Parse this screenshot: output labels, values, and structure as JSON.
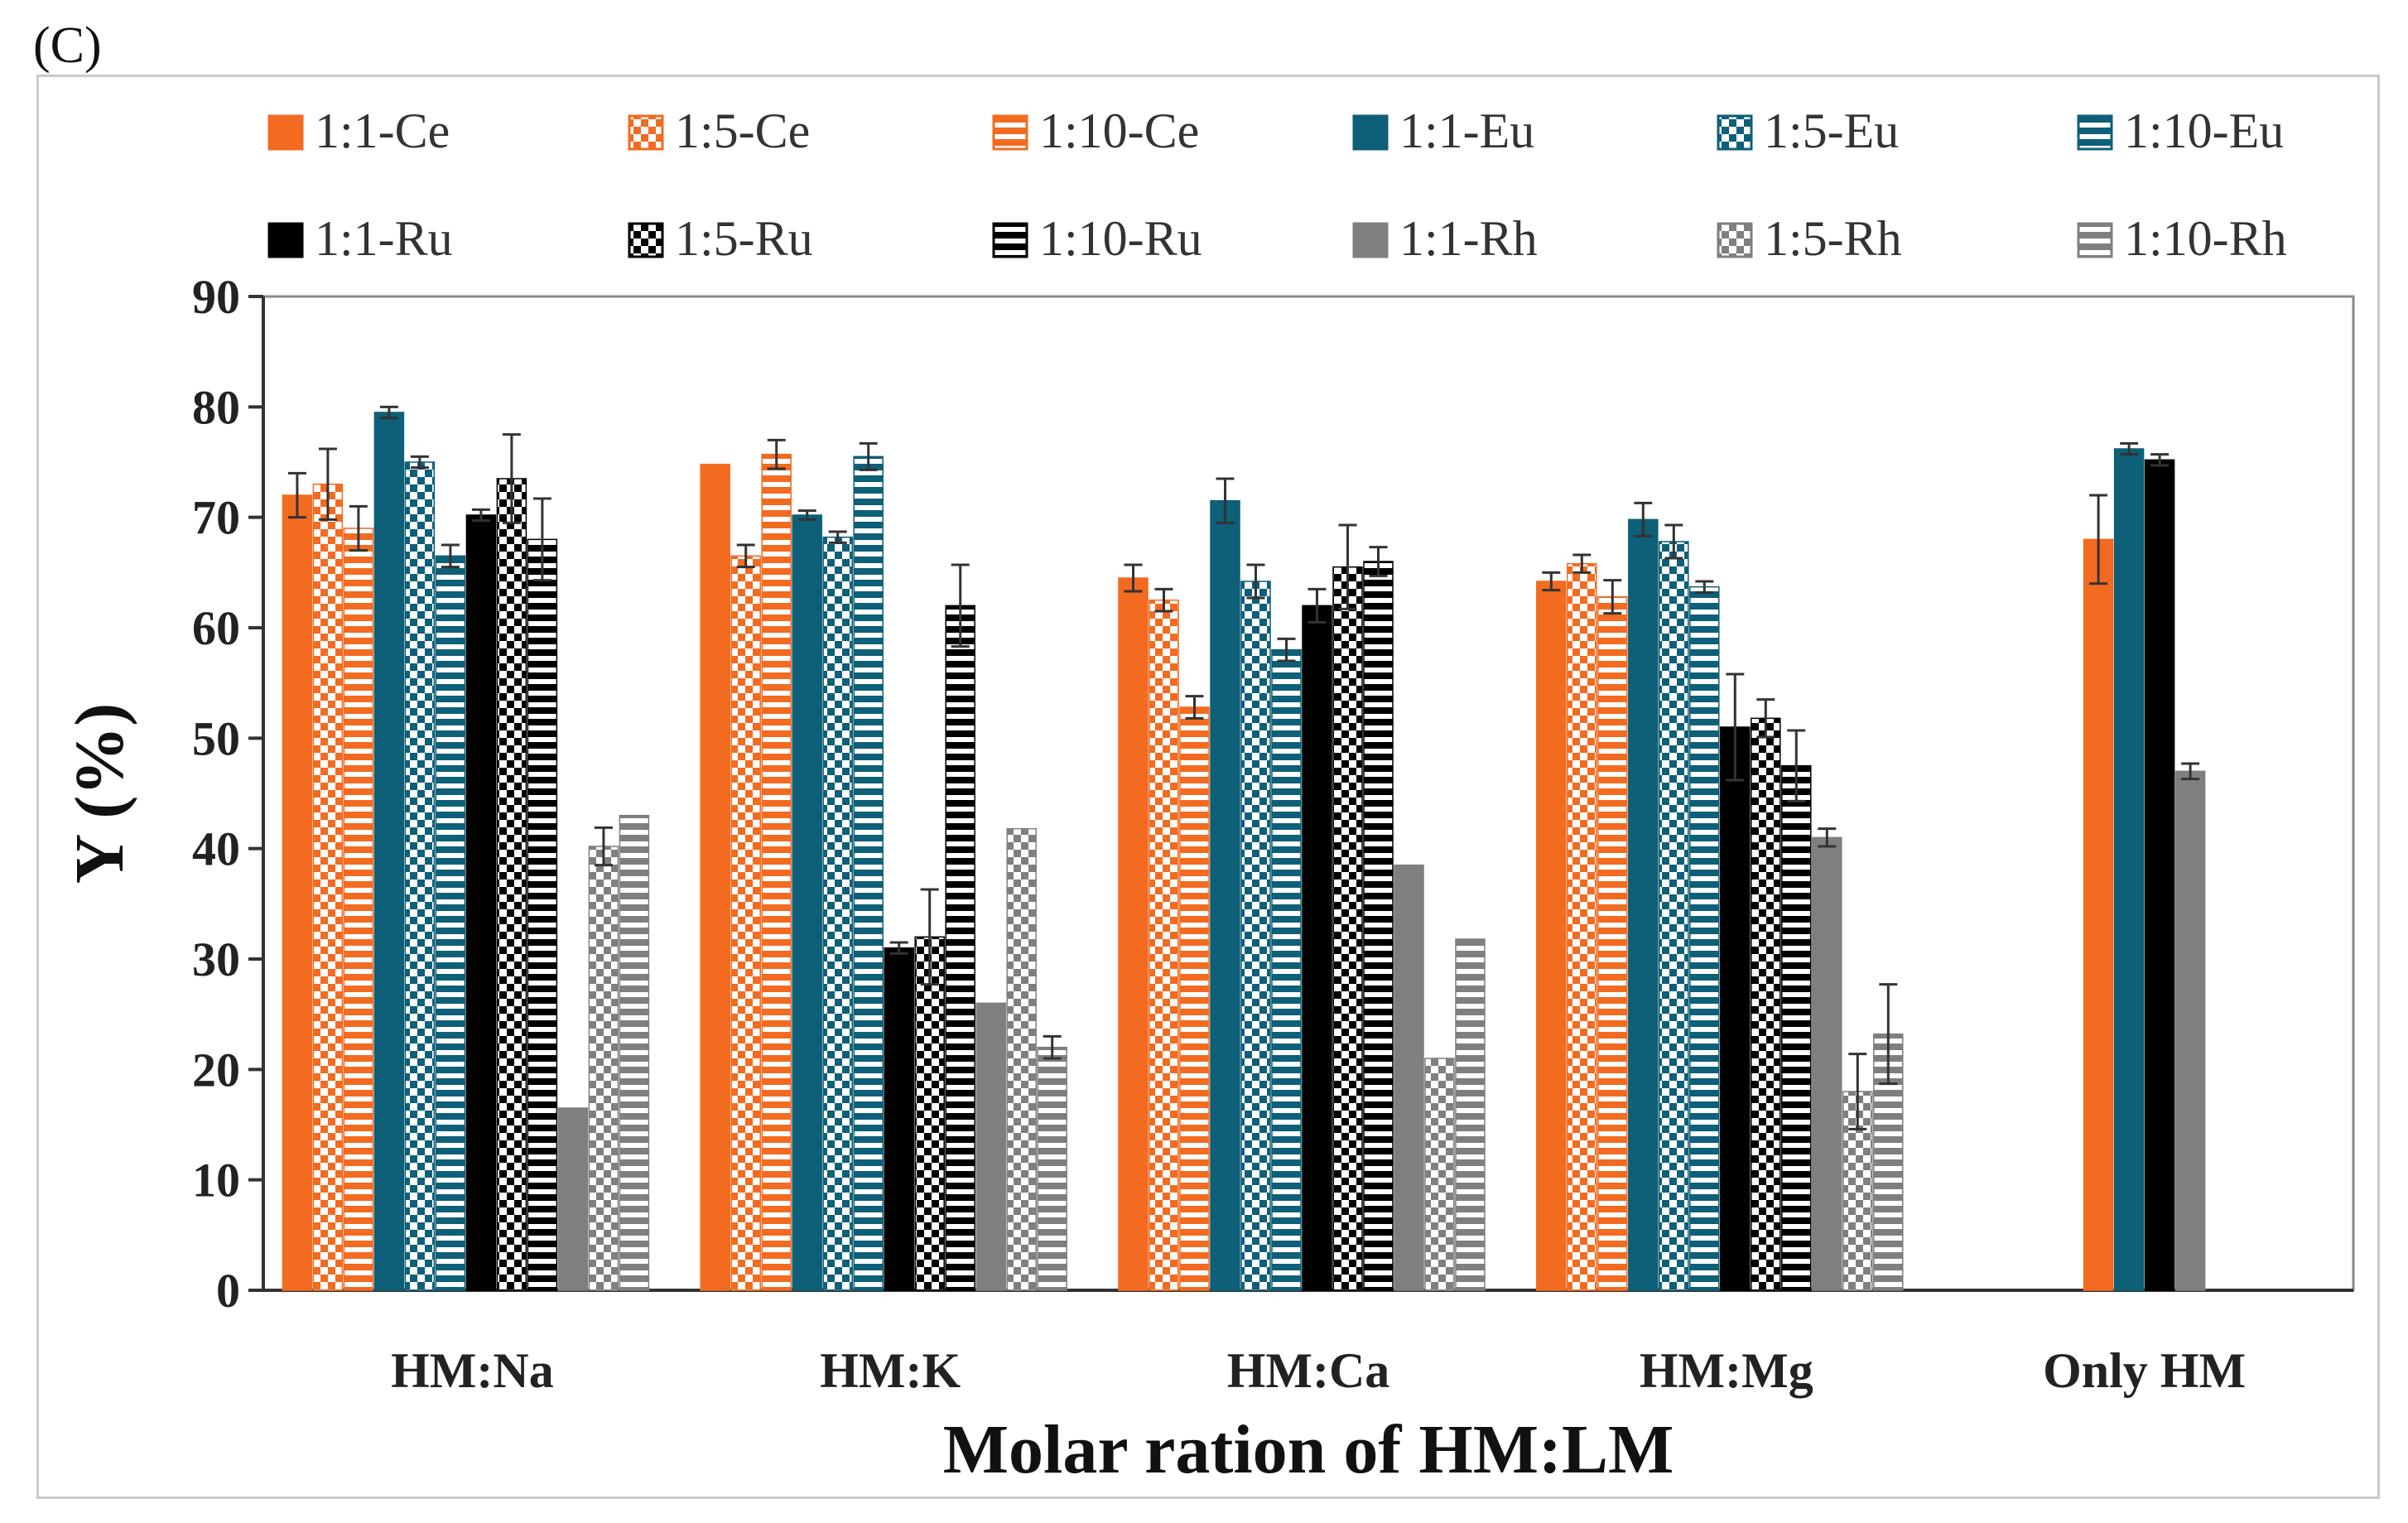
{
  "panel_label": "(C)",
  "chart_data": {
    "type": "bar",
    "title": "",
    "xlabel": "Molar ration of HM:LM",
    "ylabel": "Y (%)",
    "ylim": [
      0,
      90
    ],
    "yticks": [
      0,
      10,
      20,
      30,
      40,
      50,
      60,
      70,
      80,
      90
    ],
    "grid": false,
    "legend_position": "top",
    "categories": [
      "HM:Na",
      "HM:K",
      "HM:Ca",
      "HM:Mg",
      "Only HM"
    ],
    "series": [
      {
        "name": "1:1-Ce",
        "color": "#F26B21",
        "pattern": "solid",
        "values": [
          72,
          74.8,
          64.5,
          64.2,
          68
        ],
        "errors": [
          2,
          0,
          1.2,
          0.8,
          4
        ]
      },
      {
        "name": "1:5-Ce",
        "color": "#F26B21",
        "pattern": "checker",
        "values": [
          73,
          66.5,
          62.5,
          65.8,
          null
        ],
        "errors": [
          3.2,
          1.0,
          1.0,
          0.8,
          null
        ]
      },
      {
        "name": "1:10-Ce",
        "color": "#F26B21",
        "pattern": "hstripe",
        "values": [
          69,
          75.7,
          52.8,
          62.8,
          null
        ],
        "errors": [
          2,
          1.3,
          1.0,
          1.5,
          null
        ]
      },
      {
        "name": "1:1-Eu",
        "color": "#0E5F78",
        "pattern": "solid",
        "values": [
          79.5,
          70.2,
          71.5,
          69.8,
          76.2
        ],
        "errors": [
          0.5,
          0.4,
          2,
          1.5,
          0.5
        ]
      },
      {
        "name": "1:5-Eu",
        "color": "#0E5F78",
        "pattern": "checker",
        "values": [
          75,
          68.2,
          64.2,
          67.8,
          null
        ],
        "errors": [
          0.5,
          0.5,
          1.5,
          1.5,
          null
        ]
      },
      {
        "name": "1:10-Eu",
        "color": "#0E5F78",
        "pattern": "hstripe",
        "values": [
          66.5,
          75.5,
          58,
          63.7,
          null
        ],
        "errors": [
          1,
          1.2,
          1,
          0.5,
          null
        ]
      },
      {
        "name": "1:1-Ru",
        "color": "#000000",
        "pattern": "solid",
        "values": [
          70.2,
          31,
          62,
          51,
          75.2
        ],
        "errors": [
          0.5,
          0.5,
          1.5,
          4.8,
          0.5
        ]
      },
      {
        "name": "1:5-Ru",
        "color": "#000000",
        "pattern": "checker",
        "values": [
          73.5,
          32,
          65.5,
          51.8,
          null
        ],
        "errors": [
          4,
          4.3,
          3.8,
          1.7,
          null
        ]
      },
      {
        "name": "1:10-Ru",
        "color": "#000000",
        "pattern": "hstripe",
        "values": [
          68,
          62,
          66,
          47.5,
          null
        ],
        "errors": [
          3.7,
          3.7,
          1.3,
          3.2,
          null
        ]
      },
      {
        "name": "1:1-Rh",
        "color": "#7F7F7F",
        "pattern": "solid",
        "values": [
          16.5,
          26,
          38.5,
          41,
          47
        ],
        "errors": [
          0,
          0,
          0,
          0.8,
          0.7
        ]
      },
      {
        "name": "1:5-Rh",
        "color": "#7F7F7F",
        "pattern": "checker",
        "values": [
          40.2,
          41.8,
          21,
          18,
          null
        ],
        "errors": [
          1.7,
          0,
          0,
          3.4,
          null
        ]
      },
      {
        "name": "1:10-Rh",
        "color": "#7F7F7F",
        "pattern": "hstripe",
        "values": [
          43,
          22,
          31.8,
          23.2,
          null
        ],
        "errors": [
          0,
          1,
          0,
          4.5,
          null
        ]
      }
    ]
  }
}
